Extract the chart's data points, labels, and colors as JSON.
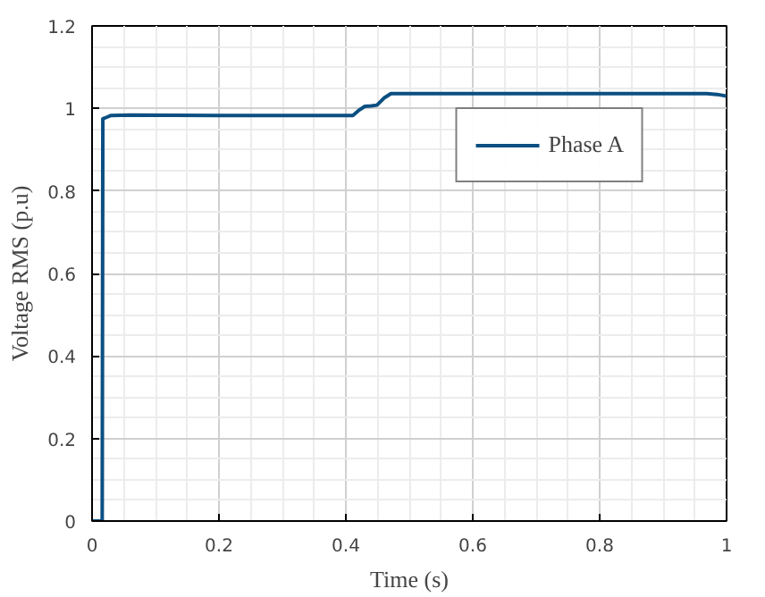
{
  "chart_data": {
    "type": "line",
    "xlabel": "Time (s)",
    "ylabel": "Voltage RMS (p.u)",
    "xlim": [
      0,
      1
    ],
    "ylim": [
      0,
      1.2
    ],
    "xticks": [
      0,
      0.2,
      0.4,
      0.6,
      0.8,
      1
    ],
    "yticks": [
      0,
      0.2,
      0.4,
      0.6,
      0.8,
      1,
      1.2
    ],
    "grid": true,
    "legend": "top right",
    "series": [
      {
        "name": "Phase A",
        "color": "#0c4f82",
        "x": [
          0,
          0.016,
          0.017,
          0.022,
          0.03,
          0.06,
          0.2,
          0.411,
          0.42,
          0.43,
          0.44,
          0.449,
          0.46,
          0.471,
          0.6,
          0.8,
          0.969,
          0.985,
          1.0
        ],
        "values": [
          0,
          0,
          0.975,
          0.978,
          0.983,
          0.984,
          0.983,
          0.983,
          0.995,
          1.005,
          1.006,
          1.008,
          1.025,
          1.036,
          1.036,
          1.036,
          1.036,
          1.034,
          1.03
        ]
      }
    ]
  }
}
